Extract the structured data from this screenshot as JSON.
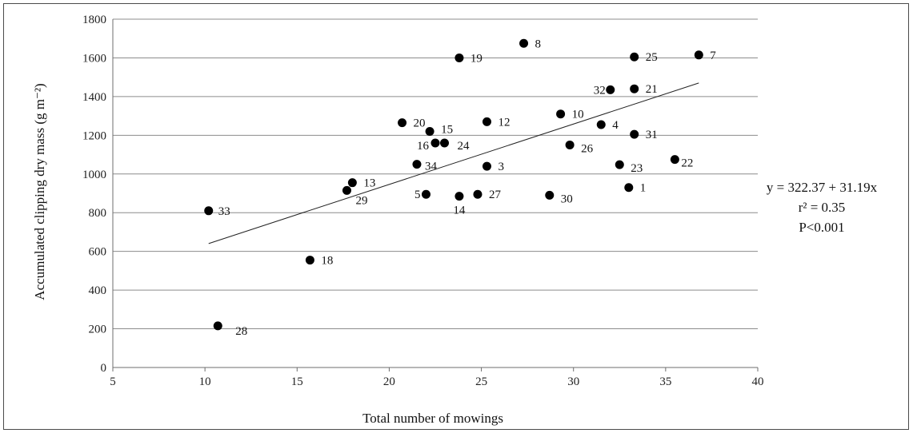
{
  "chart_data": {
    "type": "scatter",
    "xlabel": "Total number of mowings",
    "ylabel": "Accumulated clipping dry mass (g m⁻²)",
    "xlim": [
      5,
      40
    ],
    "ylim": [
      0,
      1800
    ],
    "xticks": [
      5,
      10,
      15,
      20,
      25,
      30,
      35,
      40
    ],
    "yticks": [
      0,
      200,
      400,
      600,
      800,
      1000,
      1200,
      1400,
      1600,
      1800
    ],
    "grid": "horizontal",
    "points": [
      {
        "label": "1",
        "x": 33.0,
        "y": 930
      },
      {
        "label": "3",
        "x": 25.3,
        "y": 1040
      },
      {
        "label": "4",
        "x": 31.5,
        "y": 1255
      },
      {
        "label": "5",
        "x": 22.0,
        "y": 895
      },
      {
        "label": "7",
        "x": 36.8,
        "y": 1615
      },
      {
        "label": "8",
        "x": 27.3,
        "y": 1675
      },
      {
        "label": "10",
        "x": 29.3,
        "y": 1310
      },
      {
        "label": "12",
        "x": 25.3,
        "y": 1270
      },
      {
        "label": "13",
        "x": 18.0,
        "y": 955
      },
      {
        "label": "14",
        "x": 23.8,
        "y": 885
      },
      {
        "label": "15",
        "x": 22.2,
        "y": 1220
      },
      {
        "label": "16",
        "x": 22.5,
        "y": 1160
      },
      {
        "label": "18",
        "x": 15.7,
        "y": 555
      },
      {
        "label": "19",
        "x": 23.8,
        "y": 1600
      },
      {
        "label": "20",
        "x": 20.7,
        "y": 1265
      },
      {
        "label": "21",
        "x": 33.3,
        "y": 1440
      },
      {
        "label": "22",
        "x": 35.5,
        "y": 1075
      },
      {
        "label": "23",
        "x": 32.5,
        "y": 1048
      },
      {
        "label": "24",
        "x": 23.0,
        "y": 1160
      },
      {
        "label": "25",
        "x": 33.3,
        "y": 1605
      },
      {
        "label": "26",
        "x": 29.8,
        "y": 1150
      },
      {
        "label": "27",
        "x": 24.8,
        "y": 895
      },
      {
        "label": "28",
        "x": 10.7,
        "y": 215
      },
      {
        "label": "29",
        "x": 17.7,
        "y": 915
      },
      {
        "label": "30",
        "x": 28.7,
        "y": 890
      },
      {
        "label": "31",
        "x": 33.3,
        "y": 1205
      },
      {
        "label": "32",
        "x": 32.0,
        "y": 1435
      },
      {
        "label": "33",
        "x": 10.2,
        "y": 810
      },
      {
        "label": "34",
        "x": 21.5,
        "y": 1050
      }
    ],
    "trendline": {
      "intercept": 322.37,
      "slope": 31.19,
      "x_from": 10.2,
      "x_to": 36.8
    },
    "annotations": [
      "y = 322.37 + 31.19x",
      "r² = 0.35",
      "P<0.001"
    ]
  }
}
